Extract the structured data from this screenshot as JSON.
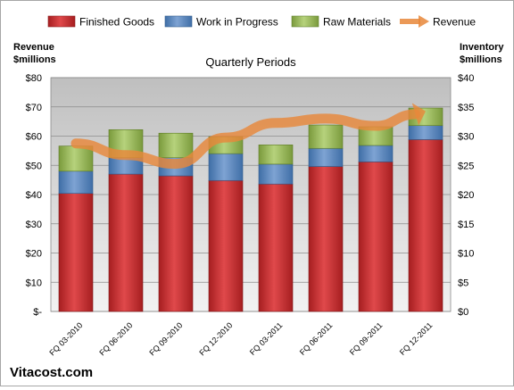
{
  "legend": [
    {
      "name": "Finished Goods",
      "color": "#c0292b"
    },
    {
      "name": "Work in Progress",
      "color": "#4f81bd"
    },
    {
      "name": "Raw Materials",
      "color": "#9bbb59"
    },
    {
      "name": "Revenue",
      "color": "#e8873a"
    }
  ],
  "chart_data": {
    "type": "bar",
    "stacked": true,
    "subtitle": "Quarterly Periods",
    "ylabel_left": "Revenue\n$millions",
    "ylabel_right": "Inventory\n$millions",
    "categories": [
      "FQ 03-2010",
      "FQ 06-2010",
      "FQ 09-2010",
      "FQ 12-2010",
      "FQ 03-2011",
      "FQ 06-2011",
      "FQ 09-2011",
      "FQ 12-2011"
    ],
    "y_left_ticks": [
      "$-",
      "$10",
      "$20",
      "$30",
      "$40",
      "$50",
      "$60",
      "$70",
      "$80"
    ],
    "y_right_ticks": [
      "$0",
      "$5",
      "$10",
      "$15",
      "$20",
      "$25",
      "$30",
      "$35",
      "$40"
    ],
    "ylim_left": [
      0,
      80
    ],
    "ylim_right": [
      0,
      40
    ],
    "grid": true,
    "legend_position": "top",
    "series": [
      {
        "name": "Finished Goods",
        "axis": "right",
        "color": "#c0292b",
        "values": [
          20.2,
          23.5,
          23.2,
          22.4,
          21.8,
          24.8,
          25.6,
          29.4
        ]
      },
      {
        "name": "Work in Progress",
        "axis": "right",
        "color": "#4f81bd",
        "values": [
          3.8,
          2.8,
          3.1,
          4.6,
          3.4,
          3.1,
          2.8,
          2.4
        ]
      },
      {
        "name": "Raw Materials",
        "axis": "right",
        "color": "#9bbb59",
        "values": [
          4.3,
          4.8,
          4.2,
          2.9,
          3.3,
          4.0,
          3.2,
          3.0
        ]
      },
      {
        "name": "Revenue",
        "axis": "left",
        "type": "line",
        "color": "#e8873a",
        "values": [
          57.5,
          53.5,
          50.5,
          59.5,
          64.5,
          66.0,
          63.5,
          68.5
        ]
      }
    ]
  },
  "footer": {
    "brand": "Vitacost.com"
  }
}
